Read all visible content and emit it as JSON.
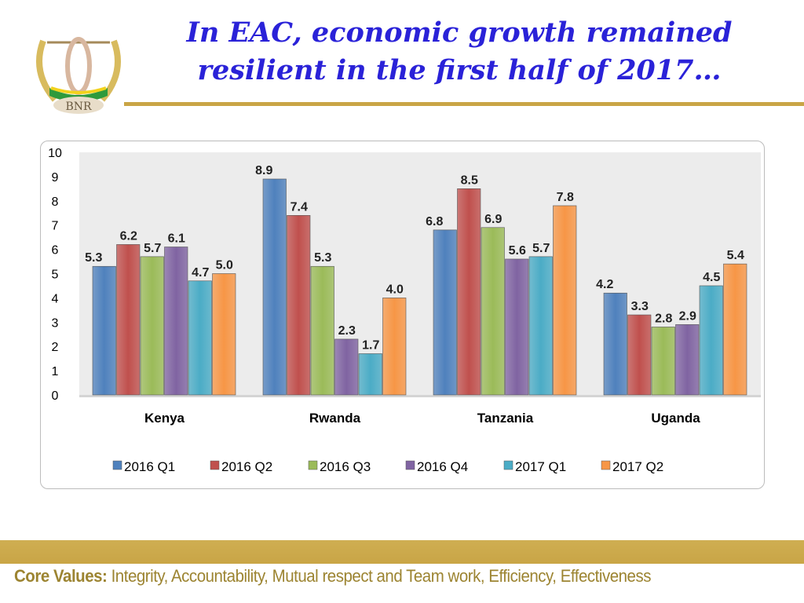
{
  "slide": {
    "title_line1": "In EAC, economic growth remained",
    "title_line2": "resilient in the first half of 2017…",
    "logo_text": "BNR",
    "footer_label": "Core Values:",
    "footer_text": " Integrity, Accountability, Mutual respect and Team work, Efficiency, Effectiveness",
    "accent_color": "#c9a546",
    "title_color": "#2a22d8"
  },
  "chart_data": {
    "type": "bar",
    "categories": [
      "Kenya",
      "Rwanda",
      "Tanzania",
      "Uganda"
    ],
    "ylim": [
      0,
      10
    ],
    "yticks": [
      "0",
      "1",
      "2",
      "3",
      "4",
      "5",
      "6",
      "7",
      "8",
      "9",
      "10"
    ],
    "grid": false,
    "legend_placement": "bottom",
    "series": [
      {
        "name": "2016 Q1",
        "color": "#4f81bd",
        "values": [
          5.3,
          8.9,
          6.8,
          4.2
        ]
      },
      {
        "name": "2016 Q2",
        "color": "#c0504d",
        "values": [
          6.2,
          7.4,
          8.5,
          3.3
        ]
      },
      {
        "name": "2016 Q3",
        "color": "#9bbb59",
        "values": [
          5.7,
          5.3,
          6.9,
          2.8
        ]
      },
      {
        "name": "2016 Q4",
        "color": "#8064a2",
        "values": [
          6.1,
          2.3,
          5.6,
          2.9
        ]
      },
      {
        "name": "2017 Q1",
        "color": "#4bacc6",
        "values": [
          4.7,
          1.7,
          5.7,
          4.5
        ]
      },
      {
        "name": "2017 Q2",
        "color": "#f79646",
        "values": [
          5.0,
          4.0,
          7.8,
          5.4
        ]
      }
    ]
  }
}
